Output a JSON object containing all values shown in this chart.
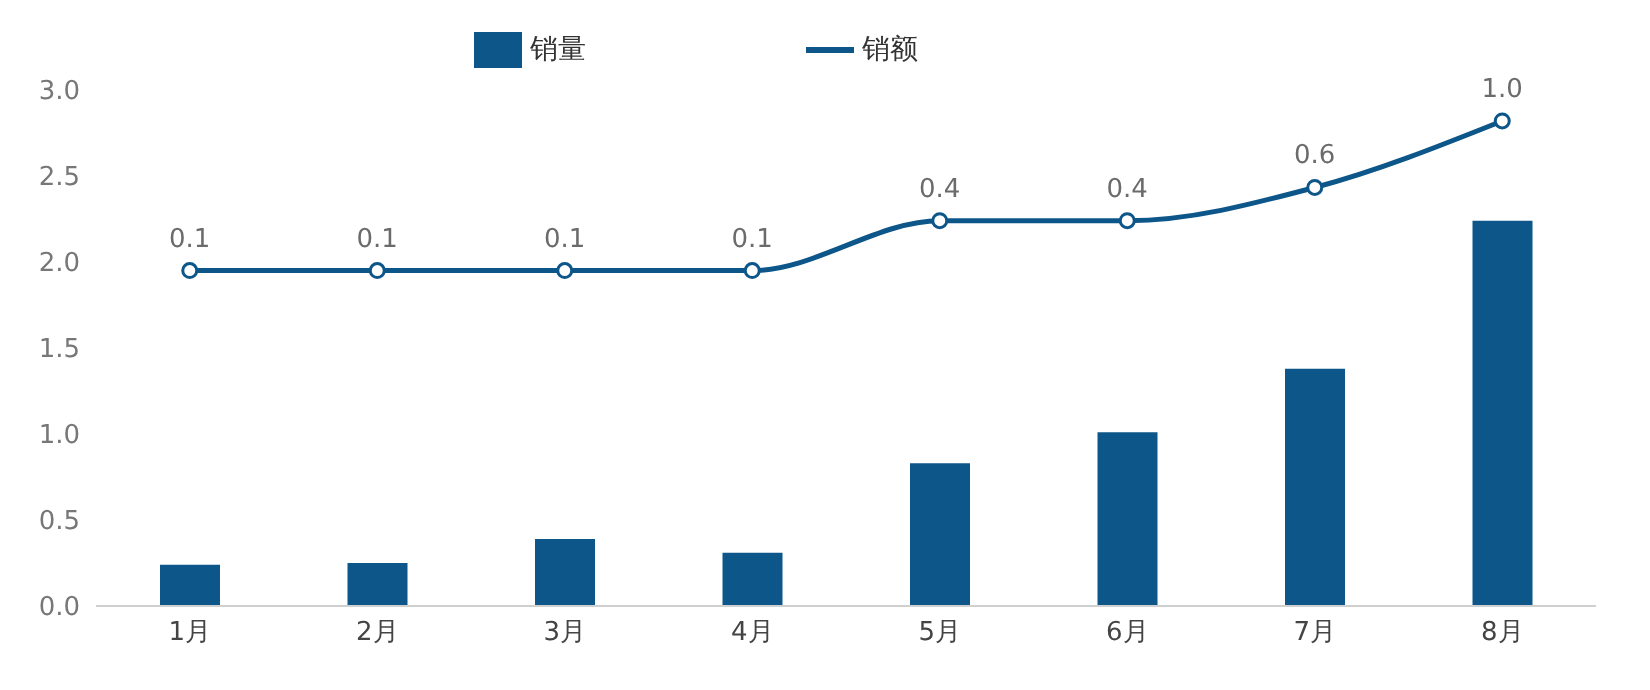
{
  "chart_data": {
    "type": "bar",
    "categories": [
      "1月",
      "2月",
      "3月",
      "4月",
      "5月",
      "6月",
      "7月",
      "8月"
    ],
    "series": [
      {
        "name": "销量",
        "color": "#0d5689",
        "values": [
          0.24,
          0.25,
          0.39,
          0.31,
          0.83,
          1.01,
          1.38,
          2.24
        ]
      },
      {
        "name": "销额",
        "type": "line",
        "axis": "y2",
        "color": "#0d5689",
        "marker": "circle",
        "values": [
          0.1,
          0.1,
          0.1,
          0.1,
          0.4,
          0.4,
          0.6,
          1.0
        ],
        "value_labels": [
          "0.1",
          "0.1",
          "0.1",
          "0.1",
          "0.4",
          "0.4",
          "0.6",
          "1.0"
        ]
      }
    ],
    "ylim": [
      0,
      3
    ],
    "yticks": [
      {
        "value": 0,
        "label": "0.0"
      },
      {
        "value": 0.5,
        "label": "0.5"
      },
      {
        "value": 1,
        "label": "1.0"
      },
      {
        "value": 1.5,
        "label": "1.5"
      },
      {
        "value": 2,
        "label": "2.0"
      },
      {
        "value": 2.5,
        "label": "2.5"
      },
      {
        "value": 3,
        "label": "3.0"
      }
    ],
    "tick_labels": [
      "x",
      "y"
    ],
    "grid": false,
    "legend": "top"
  }
}
